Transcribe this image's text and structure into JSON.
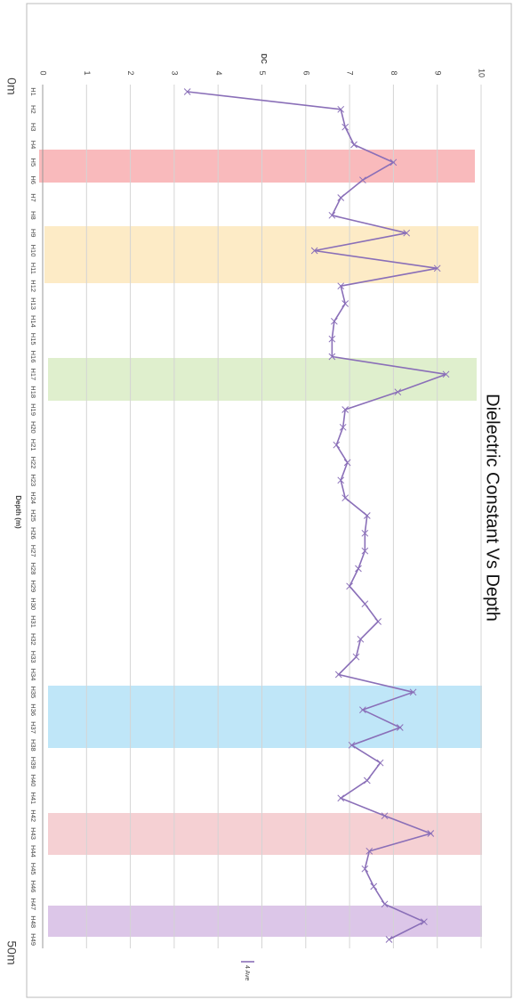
{
  "chart_data": {
    "type": "line",
    "title": "Dielectric Constant Vs Depth",
    "y_axis_label": "DC",
    "x_axis_label": "Depth (m)",
    "annotations": [
      "0m",
      "50m"
    ],
    "categories": [
      "H1",
      "H2",
      "H3",
      "H4",
      "H5",
      "H6",
      "H7",
      "H8",
      "H9",
      "H10",
      "H11",
      "H12",
      "H13",
      "H14",
      "H15",
      "H16",
      "H17",
      "H18",
      "H19",
      "H20",
      "H21",
      "H22",
      "H23",
      "H24",
      "H25",
      "H26",
      "H27",
      "H28",
      "H29",
      "H30",
      "H31",
      "H32",
      "H33",
      "H34",
      "H35",
      "H36",
      "H37",
      "H38",
      "H39",
      "H40",
      "H41",
      "H42",
      "H43",
      "H44",
      "H45",
      "H46",
      "H47",
      "H48",
      "H49"
    ],
    "series": [
      {
        "name": "4 Ave",
        "color": "#8a6fb8",
        "values": [
          3.3,
          6.8,
          6.9,
          7.1,
          8.0,
          7.3,
          6.8,
          6.6,
          8.3,
          6.2,
          9.0,
          6.8,
          6.9,
          6.65,
          6.6,
          6.6,
          9.2,
          8.1,
          6.9,
          6.85,
          6.7,
          6.95,
          6.8,
          6.9,
          7.4,
          7.35,
          7.35,
          7.2,
          7.0,
          7.35,
          7.65,
          7.25,
          7.15,
          6.75,
          8.45,
          7.3,
          8.15,
          7.05,
          7.7,
          7.4,
          6.8,
          7.8,
          8.85,
          7.45,
          7.35,
          7.55,
          7.8,
          8.7,
          7.9
        ]
      }
    ],
    "ylim": [
      0,
      10
    ],
    "yticks": [
      0,
      1,
      2,
      3,
      4,
      5,
      6,
      7,
      8,
      9,
      10
    ],
    "grid": true
  }
}
